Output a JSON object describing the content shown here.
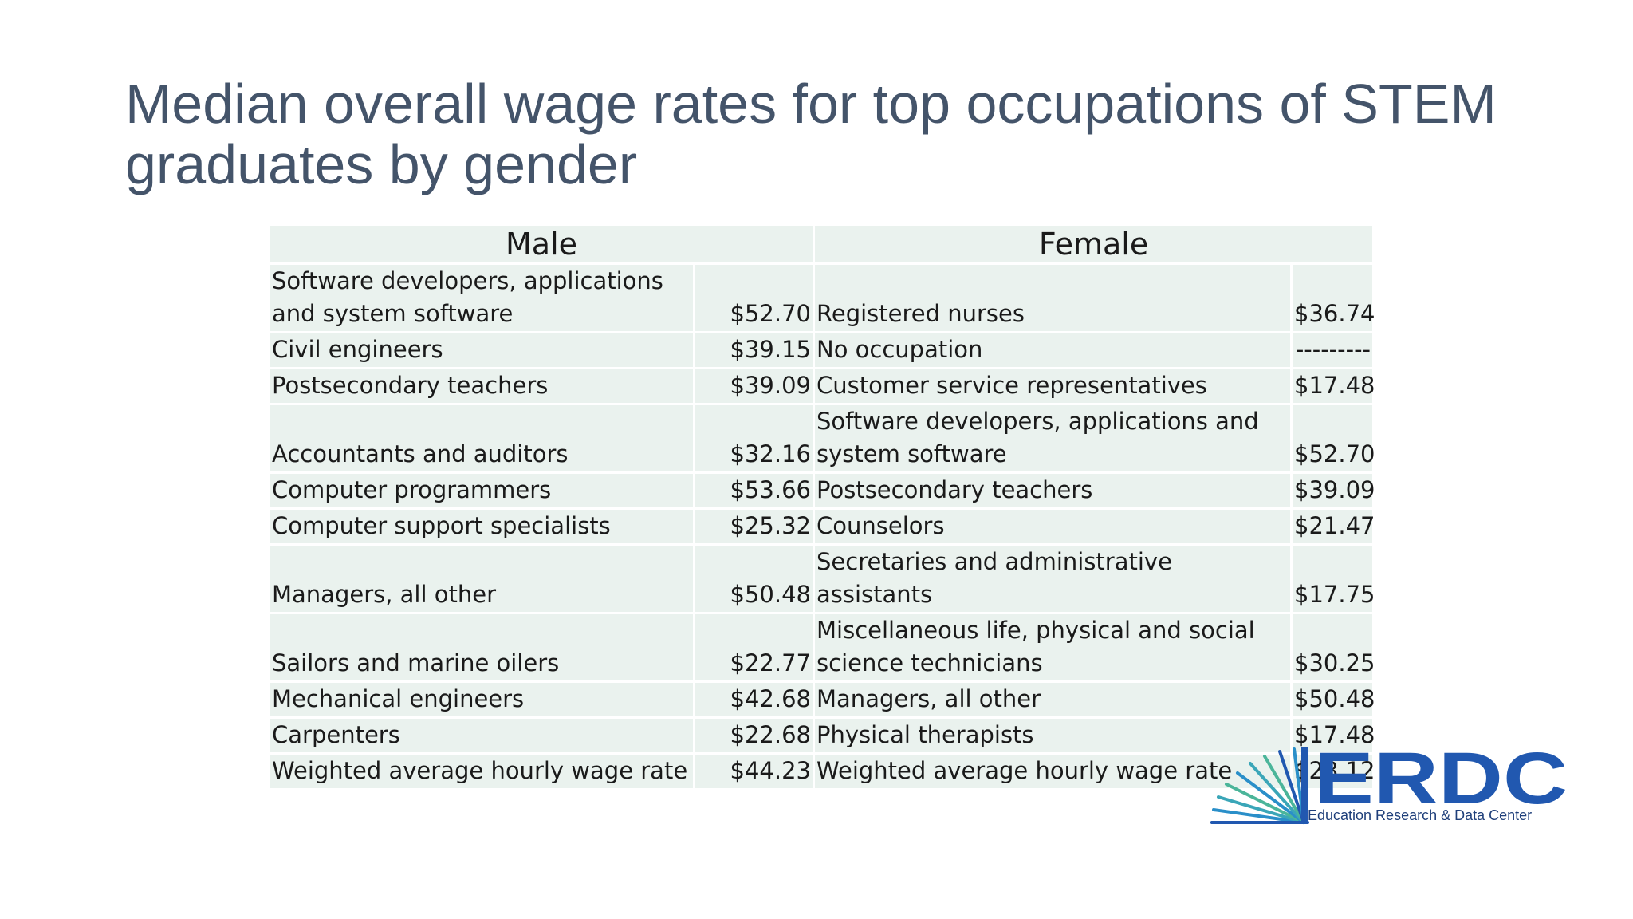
{
  "slide": {
    "title": "Median overall wage rates for top occupations of STEM graduates by gender"
  },
  "table": {
    "headers": {
      "male": "Male",
      "female": "Female"
    },
    "rows": [
      {
        "male_occupation": "Software developers, applications and system software",
        "male_wage": "$52.70",
        "female_occupation": "Registered nurses",
        "female_wage": "$36.74"
      },
      {
        "male_occupation": "Civil engineers",
        "male_wage": "$39.15",
        "female_occupation": "No occupation",
        "female_wage": "---------"
      },
      {
        "male_occupation": "Postsecondary teachers",
        "male_wage": "$39.09",
        "female_occupation": "Customer service representatives",
        "female_wage": "$17.48"
      },
      {
        "male_occupation": "Accountants and auditors",
        "male_wage": "$32.16",
        "female_occupation": "Software developers, applications and system software",
        "female_wage": "$52.70"
      },
      {
        "male_occupation": "Computer programmers",
        "male_wage": "$53.66",
        "female_occupation": "Postsecondary teachers",
        "female_wage": "$39.09"
      },
      {
        "male_occupation": "Computer support specialists",
        "male_wage": "$25.32",
        "female_occupation": "Counselors",
        "female_wage": "$21.47"
      },
      {
        "male_occupation": "Managers, all other",
        "male_wage": "$50.48",
        "female_occupation": "Secretaries and administrative assistants",
        "female_wage": "$17.75"
      },
      {
        "male_occupation": "Sailors and marine oilers",
        "male_wage": "$22.77",
        "female_occupation": "Miscellaneous life, physical and social science technicians",
        "female_wage": "$30.25"
      },
      {
        "male_occupation": "Mechanical engineers",
        "male_wage": "$42.68",
        "female_occupation": "Managers, all other",
        "female_wage": "$50.48"
      },
      {
        "male_occupation": "Carpenters",
        "male_wage": "$22.68",
        "female_occupation": "Physical therapists",
        "female_wage": "$17.48"
      },
      {
        "male_occupation": "Weighted average hourly wage rate",
        "male_wage": "$44.23",
        "female_occupation": "Weighted average hourly wage rate",
        "female_wage": "$28.12"
      }
    ]
  },
  "logo": {
    "name": "ERDC",
    "subtitle": "Education Research & Data Center",
    "color": "#2158b0"
  }
}
